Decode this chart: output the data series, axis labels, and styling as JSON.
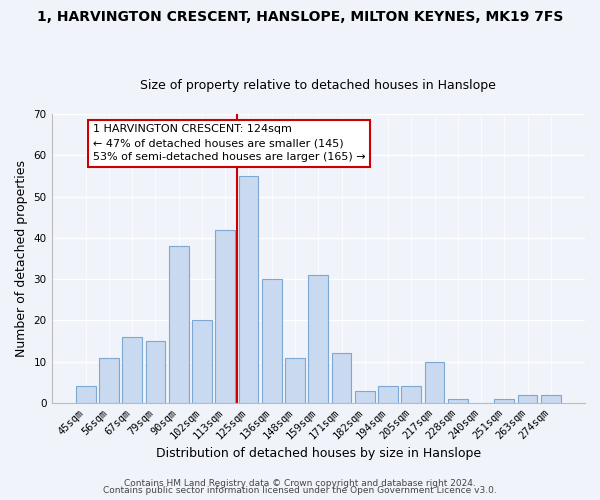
{
  "title": "1, HARVINGTON CRESCENT, HANSLOPE, MILTON KEYNES, MK19 7FS",
  "subtitle": "Size of property relative to detached houses in Hanslope",
  "xlabel": "Distribution of detached houses by size in Hanslope",
  "ylabel": "Number of detached properties",
  "bin_labels": [
    "45sqm",
    "56sqm",
    "67sqm",
    "79sqm",
    "90sqm",
    "102sqm",
    "113sqm",
    "125sqm",
    "136sqm",
    "148sqm",
    "159sqm",
    "171sqm",
    "182sqm",
    "194sqm",
    "205sqm",
    "217sqm",
    "228sqm",
    "240sqm",
    "251sqm",
    "263sqm",
    "274sqm"
  ],
  "bar_values": [
    4,
    11,
    16,
    15,
    38,
    20,
    42,
    55,
    30,
    11,
    31,
    12,
    3,
    4,
    4,
    10,
    1,
    0,
    1,
    2,
    2
  ],
  "bar_color": "#c9d9f0",
  "bar_edge_color": "#7ea8d4",
  "vline_color": "#cc0000",
  "vline_bar_index": 7,
  "ylim": [
    0,
    70
  ],
  "yticks": [
    0,
    10,
    20,
    30,
    40,
    50,
    60,
    70
  ],
  "annotation_title": "1 HARVINGTON CRESCENT: 124sqm",
  "annotation_line1": "← 47% of detached houses are smaller (145)",
  "annotation_line2": "53% of semi-detached houses are larger (165) →",
  "annotation_box_color": "#ffffff",
  "annotation_box_edge": "#cc0000",
  "footer1": "Contains HM Land Registry data © Crown copyright and database right 2024.",
  "footer2": "Contains public sector information licensed under the Open Government Licence v3.0.",
  "bg_color": "#f0f4fa",
  "title_fontsize": 10,
  "subtitle_fontsize": 9,
  "axis_label_fontsize": 9,
  "tick_fontsize": 7.5,
  "annotation_fontsize": 8,
  "footer_fontsize": 6.5
}
